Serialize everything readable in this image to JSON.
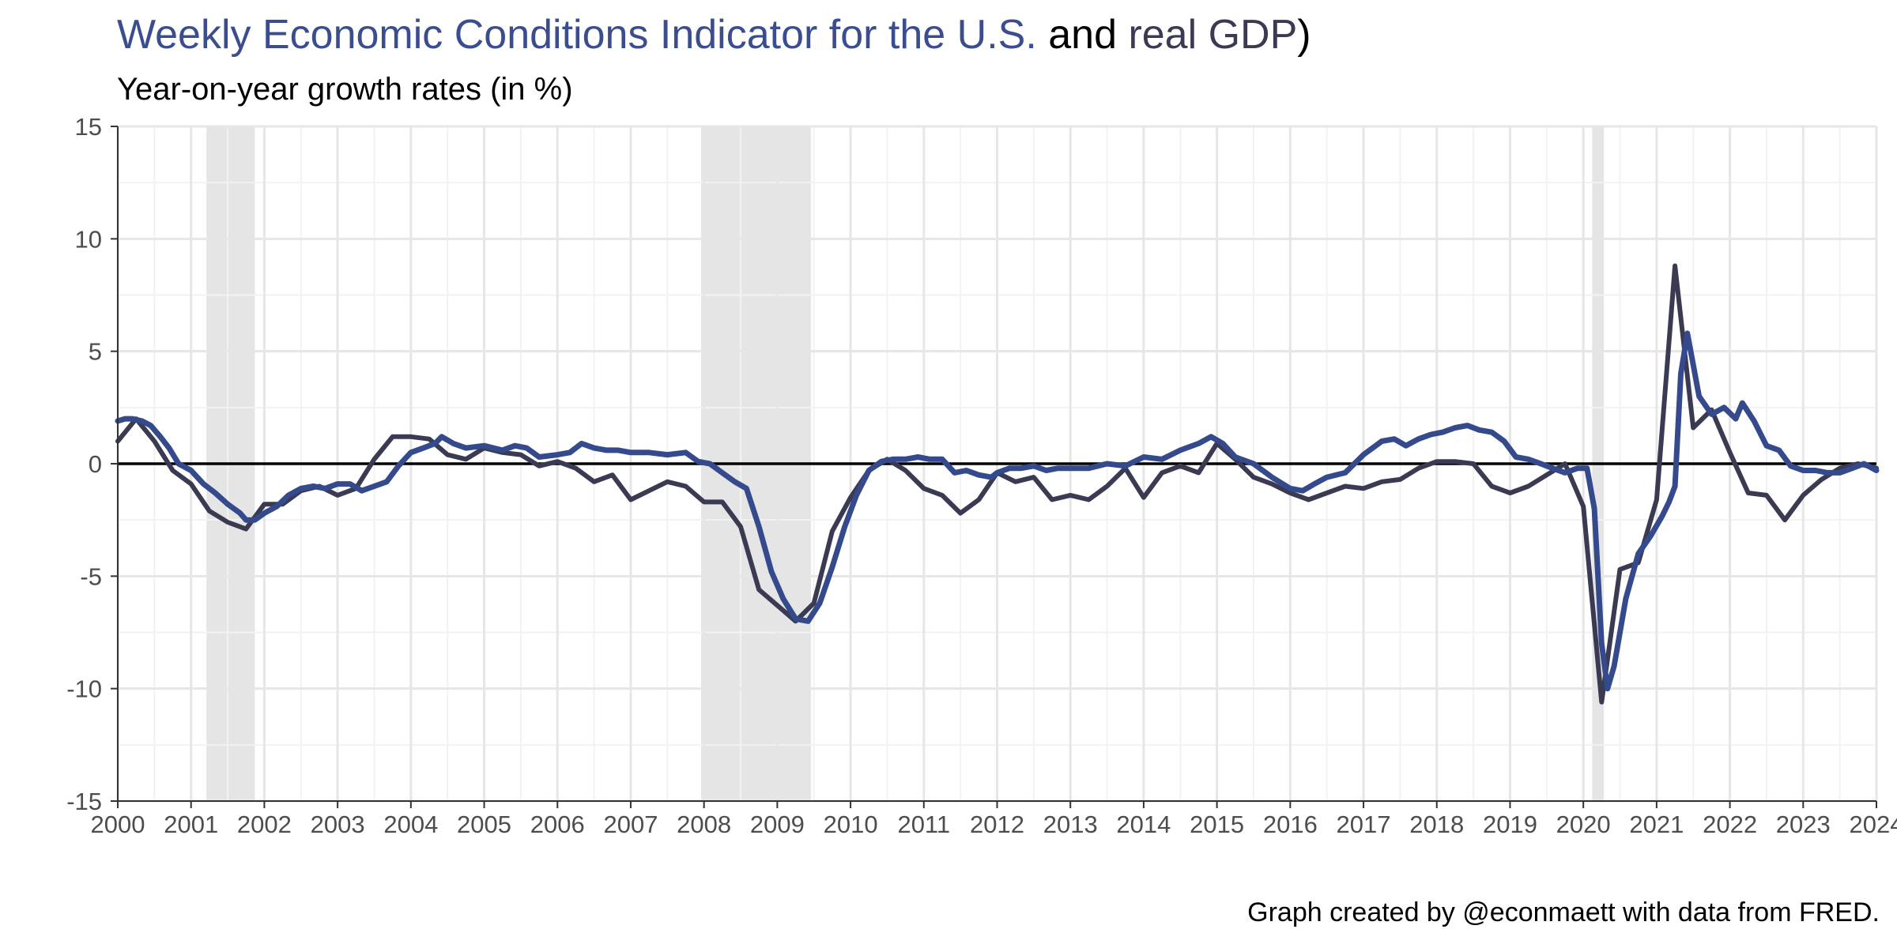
{
  "title": {
    "part1": "Weekly Economic Conditions Indicator for the U.S.",
    "part2": " and ",
    "part3": "real GDP",
    "part4": ")"
  },
  "subtitle": "Year-on-year growth rates (in %)",
  "caption": "Graph created by @econmaett with data from FRED.",
  "colors": {
    "wei": "#354a8c",
    "gdp": "#3a3a52",
    "title_part1": "#3a4d8f",
    "title_part3": "#3a3a52",
    "recession": "#e5e5e5",
    "grid_major": "#e6e6e6",
    "grid_minor": "#f2f2f2",
    "zero_line": "#000000"
  },
  "chart_data": {
    "type": "line",
    "title": "Weekly Economic Conditions Indicator for the U.S. and real GDP)",
    "subtitle": "Year-on-year growth rates (in %)",
    "xlabel": "",
    "ylabel": "",
    "xlim": [
      2000,
      2024
    ],
    "ylim": [
      -15,
      15
    ],
    "x_ticks": [
      2000,
      2001,
      2002,
      2003,
      2004,
      2005,
      2006,
      2007,
      2008,
      2009,
      2010,
      2011,
      2012,
      2013,
      2014,
      2015,
      2016,
      2017,
      2018,
      2019,
      2020,
      2021,
      2022,
      2023,
      2024
    ],
    "y_ticks": [
      -15,
      -10,
      -5,
      0,
      5,
      10,
      15
    ],
    "grid": true,
    "reference_line_y": 0,
    "recessions": [
      [
        2001.21,
        2001.87
      ],
      [
        2007.96,
        2009.46
      ],
      [
        2020.12,
        2020.28
      ]
    ],
    "series": [
      {
        "key": "gdp",
        "values": [
          [
            2000.0,
            1.0
          ],
          [
            2000.25,
            2.0
          ],
          [
            2000.5,
            1.0
          ],
          [
            2000.75,
            -0.3
          ],
          [
            2001.0,
            -0.9
          ],
          [
            2001.25,
            -2.1
          ],
          [
            2001.5,
            -2.6
          ],
          [
            2001.75,
            -2.9
          ],
          [
            2002.0,
            -1.8
          ],
          [
            2002.25,
            -1.8
          ],
          [
            2002.5,
            -1.2
          ],
          [
            2002.75,
            -1.0
          ],
          [
            2003.0,
            -1.4
          ],
          [
            2003.25,
            -1.1
          ],
          [
            2003.5,
            0.2
          ],
          [
            2003.75,
            1.2
          ],
          [
            2004.0,
            1.2
          ],
          [
            2004.25,
            1.1
          ],
          [
            2004.5,
            0.4
          ],
          [
            2004.75,
            0.2
          ],
          [
            2005.0,
            0.7
          ],
          [
            2005.25,
            0.5
          ],
          [
            2005.5,
            0.4
          ],
          [
            2005.75,
            -0.1
          ],
          [
            2006.0,
            0.1
          ],
          [
            2006.25,
            -0.2
          ],
          [
            2006.5,
            -0.8
          ],
          [
            2006.75,
            -0.5
          ],
          [
            2007.0,
            -1.6
          ],
          [
            2007.25,
            -1.2
          ],
          [
            2007.5,
            -0.8
          ],
          [
            2007.75,
            -1.0
          ],
          [
            2008.0,
            -1.7
          ],
          [
            2008.25,
            -1.7
          ],
          [
            2008.5,
            -2.8
          ],
          [
            2008.75,
            -5.6
          ],
          [
            2009.0,
            -6.3
          ],
          [
            2009.25,
            -7.0
          ],
          [
            2009.5,
            -6.2
          ],
          [
            2009.75,
            -3.0
          ],
          [
            2010.0,
            -1.5
          ],
          [
            2010.25,
            -0.3
          ],
          [
            2010.5,
            0.2
          ],
          [
            2010.75,
            -0.3
          ],
          [
            2011.0,
            -1.1
          ],
          [
            2011.25,
            -1.4
          ],
          [
            2011.5,
            -2.2
          ],
          [
            2011.75,
            -1.6
          ],
          [
            2012.0,
            -0.4
          ],
          [
            2012.25,
            -0.8
          ],
          [
            2012.5,
            -0.6
          ],
          [
            2012.75,
            -1.6
          ],
          [
            2013.0,
            -1.4
          ],
          [
            2013.25,
            -1.6
          ],
          [
            2013.5,
            -1.0
          ],
          [
            2013.75,
            -0.2
          ],
          [
            2014.0,
            -1.5
          ],
          [
            2014.25,
            -0.4
          ],
          [
            2014.5,
            -0.1
          ],
          [
            2014.75,
            -0.4
          ],
          [
            2015.0,
            0.9
          ],
          [
            2015.25,
            0.2
          ],
          [
            2015.5,
            -0.6
          ],
          [
            2015.75,
            -0.9
          ],
          [
            2016.0,
            -1.3
          ],
          [
            2016.25,
            -1.6
          ],
          [
            2016.5,
            -1.3
          ],
          [
            2016.75,
            -1.0
          ],
          [
            2017.0,
            -1.1
          ],
          [
            2017.25,
            -0.8
          ],
          [
            2017.5,
            -0.7
          ],
          [
            2017.75,
            -0.2
          ],
          [
            2018.0,
            0.1
          ],
          [
            2018.25,
            0.1
          ],
          [
            2018.5,
            0.0
          ],
          [
            2018.75,
            -1.0
          ],
          [
            2019.0,
            -1.3
          ],
          [
            2019.25,
            -1.0
          ],
          [
            2019.5,
            -0.5
          ],
          [
            2019.75,
            0.0
          ],
          [
            2020.0,
            -1.9
          ],
          [
            2020.25,
            -10.6
          ],
          [
            2020.5,
            -4.7
          ],
          [
            2020.75,
            -4.4
          ],
          [
            2021.0,
            -1.6
          ],
          [
            2021.25,
            8.8
          ],
          [
            2021.5,
            1.6
          ],
          [
            2021.75,
            2.4
          ],
          [
            2022.0,
            0.5
          ],
          [
            2022.25,
            -1.3
          ],
          [
            2022.5,
            -1.4
          ],
          [
            2022.75,
            -2.5
          ],
          [
            2023.0,
            -1.4
          ],
          [
            2023.25,
            -0.7
          ],
          [
            2023.5,
            -0.2
          ],
          [
            2023.75,
            0.0
          ],
          [
            2024.0,
            -0.2
          ]
        ]
      },
      {
        "key": "wei",
        "values": [
          [
            2000.0,
            1.9
          ],
          [
            2000.1,
            2.0
          ],
          [
            2000.2,
            2.0
          ],
          [
            2000.33,
            1.9
          ],
          [
            2000.45,
            1.7
          ],
          [
            2000.58,
            1.2
          ],
          [
            2000.7,
            0.7
          ],
          [
            2000.83,
            0.0
          ],
          [
            2001.0,
            -0.3
          ],
          [
            2001.17,
            -0.9
          ],
          [
            2001.33,
            -1.3
          ],
          [
            2001.5,
            -1.8
          ],
          [
            2001.67,
            -2.2
          ],
          [
            2001.75,
            -2.5
          ],
          [
            2001.87,
            -2.5
          ],
          [
            2002.0,
            -2.2
          ],
          [
            2002.17,
            -1.9
          ],
          [
            2002.33,
            -1.4
          ],
          [
            2002.5,
            -1.1
          ],
          [
            2002.67,
            -1.0
          ],
          [
            2002.83,
            -1.1
          ],
          [
            2003.0,
            -0.9
          ],
          [
            2003.17,
            -0.9
          ],
          [
            2003.33,
            -1.2
          ],
          [
            2003.5,
            -1.0
          ],
          [
            2003.67,
            -0.8
          ],
          [
            2003.83,
            -0.1
          ],
          [
            2004.0,
            0.5
          ],
          [
            2004.17,
            0.7
          ],
          [
            2004.33,
            0.9
          ],
          [
            2004.42,
            1.2
          ],
          [
            2004.58,
            0.9
          ],
          [
            2004.75,
            0.7
          ],
          [
            2005.0,
            0.8
          ],
          [
            2005.25,
            0.6
          ],
          [
            2005.42,
            0.8
          ],
          [
            2005.58,
            0.7
          ],
          [
            2005.75,
            0.3
          ],
          [
            2006.0,
            0.4
          ],
          [
            2006.17,
            0.5
          ],
          [
            2006.33,
            0.9
          ],
          [
            2006.5,
            0.7
          ],
          [
            2006.67,
            0.6
          ],
          [
            2006.83,
            0.6
          ],
          [
            2007.0,
            0.5
          ],
          [
            2007.25,
            0.5
          ],
          [
            2007.5,
            0.4
          ],
          [
            2007.75,
            0.5
          ],
          [
            2007.92,
            0.1
          ],
          [
            2008.08,
            0.0
          ],
          [
            2008.25,
            -0.4
          ],
          [
            2008.42,
            -0.8
          ],
          [
            2008.58,
            -1.1
          ],
          [
            2008.75,
            -2.8
          ],
          [
            2008.92,
            -4.8
          ],
          [
            2009.08,
            -6.0
          ],
          [
            2009.25,
            -6.9
          ],
          [
            2009.42,
            -7.0
          ],
          [
            2009.58,
            -6.2
          ],
          [
            2009.75,
            -4.6
          ],
          [
            2009.92,
            -2.8
          ],
          [
            2010.08,
            -1.4
          ],
          [
            2010.25,
            -0.3
          ],
          [
            2010.42,
            0.1
          ],
          [
            2010.58,
            0.2
          ],
          [
            2010.75,
            0.2
          ],
          [
            2010.92,
            0.3
          ],
          [
            2011.08,
            0.2
          ],
          [
            2011.25,
            0.2
          ],
          [
            2011.42,
            -0.4
          ],
          [
            2011.58,
            -0.3
          ],
          [
            2011.75,
            -0.5
          ],
          [
            2011.92,
            -0.6
          ],
          [
            2012.0,
            -0.4
          ],
          [
            2012.17,
            -0.2
          ],
          [
            2012.33,
            -0.2
          ],
          [
            2012.5,
            -0.1
          ],
          [
            2012.67,
            -0.3
          ],
          [
            2012.83,
            -0.2
          ],
          [
            2013.0,
            -0.2
          ],
          [
            2013.25,
            -0.2
          ],
          [
            2013.5,
            0.0
          ],
          [
            2013.75,
            -0.1
          ],
          [
            2014.0,
            0.3
          ],
          [
            2014.25,
            0.2
          ],
          [
            2014.5,
            0.6
          ],
          [
            2014.75,
            0.9
          ],
          [
            2014.92,
            1.2
          ],
          [
            2015.08,
            0.9
          ],
          [
            2015.25,
            0.3
          ],
          [
            2015.5,
            0.0
          ],
          [
            2015.75,
            -0.6
          ],
          [
            2016.0,
            -1.1
          ],
          [
            2016.17,
            -1.2
          ],
          [
            2016.33,
            -0.9
          ],
          [
            2016.5,
            -0.6
          ],
          [
            2016.75,
            -0.4
          ],
          [
            2017.0,
            0.4
          ],
          [
            2017.25,
            1.0
          ],
          [
            2017.42,
            1.1
          ],
          [
            2017.58,
            0.8
          ],
          [
            2017.75,
            1.1
          ],
          [
            2017.92,
            1.3
          ],
          [
            2018.08,
            1.4
          ],
          [
            2018.25,
            1.6
          ],
          [
            2018.42,
            1.7
          ],
          [
            2018.58,
            1.5
          ],
          [
            2018.75,
            1.4
          ],
          [
            2018.92,
            1.0
          ],
          [
            2019.08,
            0.3
          ],
          [
            2019.25,
            0.2
          ],
          [
            2019.42,
            0.0
          ],
          [
            2019.58,
            -0.2
          ],
          [
            2019.75,
            -0.4
          ],
          [
            2019.92,
            -0.2
          ],
          [
            2020.05,
            -0.2
          ],
          [
            2020.15,
            -2.0
          ],
          [
            2020.25,
            -8.0
          ],
          [
            2020.33,
            -10.0
          ],
          [
            2020.42,
            -9.0
          ],
          [
            2020.58,
            -6.0
          ],
          [
            2020.75,
            -4.0
          ],
          [
            2020.92,
            -3.2
          ],
          [
            2021.08,
            -2.3
          ],
          [
            2021.17,
            -1.7
          ],
          [
            2021.25,
            -1.0
          ],
          [
            2021.33,
            4.0
          ],
          [
            2021.42,
            5.8
          ],
          [
            2021.58,
            3.0
          ],
          [
            2021.75,
            2.2
          ],
          [
            2021.92,
            2.5
          ],
          [
            2022.08,
            2.0
          ],
          [
            2022.17,
            2.7
          ],
          [
            2022.33,
            1.9
          ],
          [
            2022.5,
            0.8
          ],
          [
            2022.67,
            0.6
          ],
          [
            2022.83,
            -0.1
          ],
          [
            2023.0,
            -0.3
          ],
          [
            2023.17,
            -0.3
          ],
          [
            2023.33,
            -0.4
          ],
          [
            2023.5,
            -0.4
          ],
          [
            2023.67,
            -0.2
          ],
          [
            2023.83,
            0.0
          ],
          [
            2024.0,
            -0.3
          ]
        ]
      }
    ]
  }
}
